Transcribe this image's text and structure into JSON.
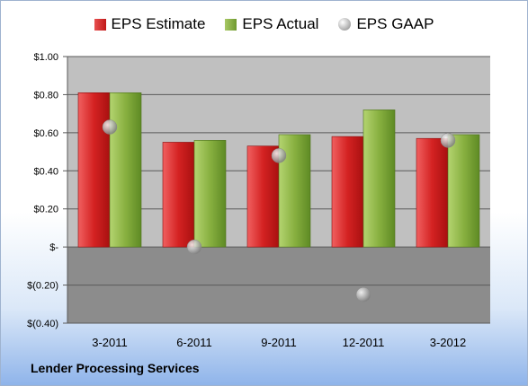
{
  "legend": {
    "estimate": "EPS Estimate",
    "actual": "EPS Actual",
    "gaap": "EPS GAAP"
  },
  "footer": "Lender Processing Services",
  "colors": {
    "estimate": "#c81e1e",
    "actual": "#7aa33a",
    "gaap": "#a8a8a8",
    "plot_positive": "#c0c0c0",
    "plot_negative": "#8c8c8c"
  },
  "chart_data": {
    "type": "bar",
    "categories": [
      "3-2011",
      "6-2011",
      "9-2011",
      "12-2011",
      "3-2012"
    ],
    "series": [
      {
        "name": "EPS Estimate",
        "values": [
          0.81,
          0.55,
          0.53,
          0.58,
          0.57
        ]
      },
      {
        "name": "EPS Actual",
        "values": [
          0.81,
          0.56,
          0.59,
          0.72,
          0.59
        ]
      },
      {
        "name": "EPS GAAP",
        "values": [
          0.63,
          0.0,
          0.48,
          -0.25,
          0.56
        ]
      }
    ],
    "ylim": [
      -0.4,
      1.0
    ],
    "yticks": [
      1.0,
      0.8,
      0.6,
      0.4,
      0.2,
      0.0,
      -0.2,
      -0.4
    ],
    "ytick_labels": [
      "$1.00",
      "$0.80",
      "$0.60",
      "$0.40",
      "$0.20",
      "$-",
      "$(0.20)",
      "$(0.40)"
    ],
    "grid": true,
    "legend_position": "top"
  }
}
